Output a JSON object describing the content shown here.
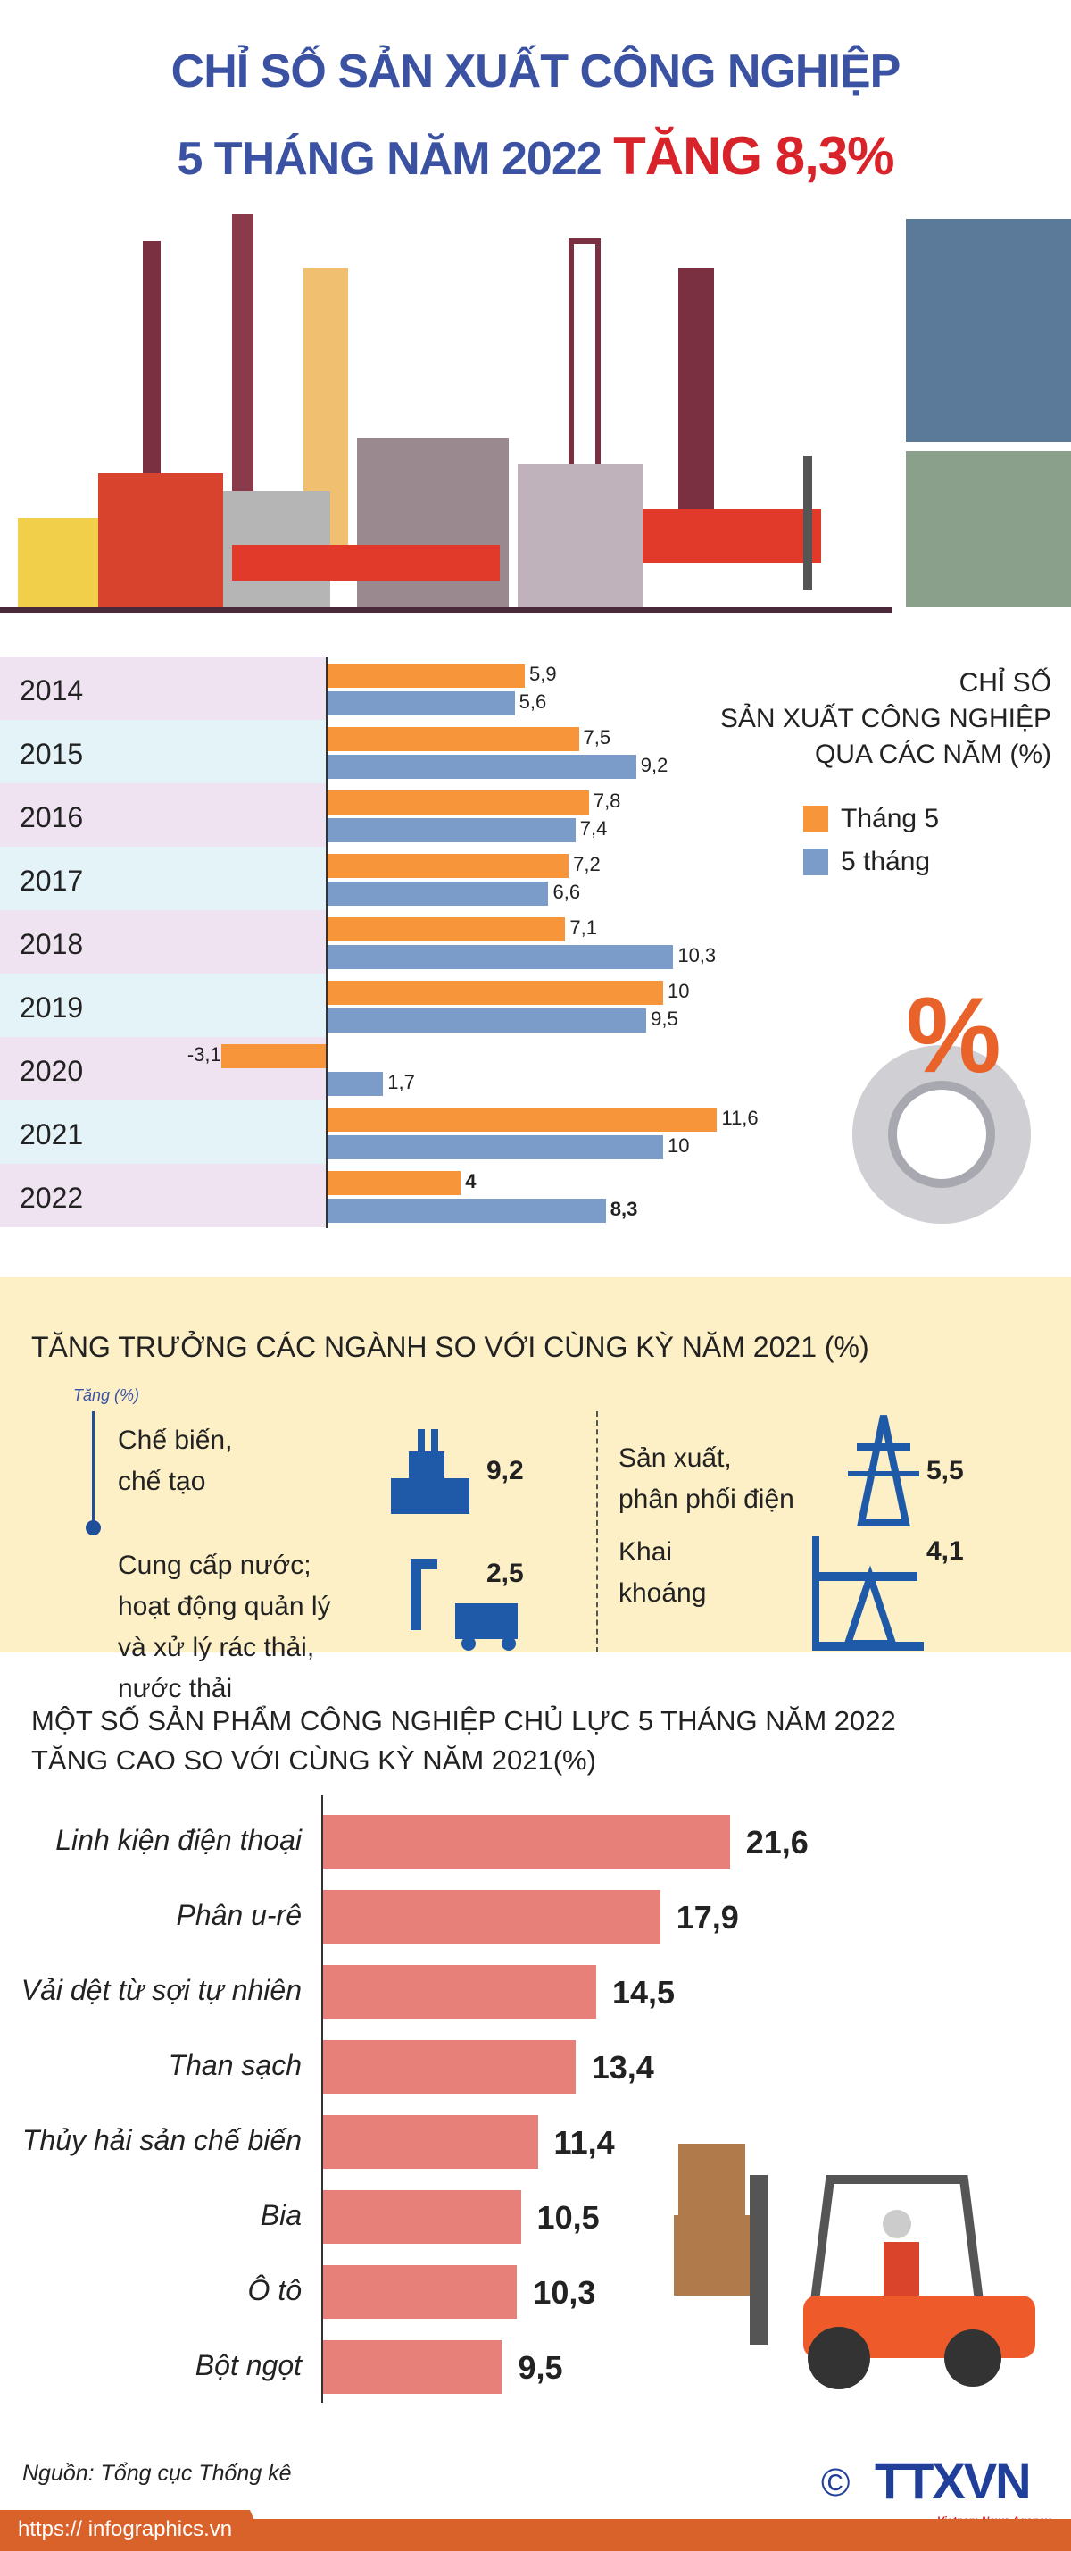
{
  "header": {
    "title_line1": "CHỈ SỐ SẢN XUẤT CÔNG NGHIỆP",
    "title_line2_prefix": "5 THÁNG NĂM 2022",
    "title_line2_highlight": "TĂNG 8,3%"
  },
  "colors": {
    "title_blue": "#3b52a3",
    "title_red": "#d9232a",
    "orange": "#f7953a",
    "blue": "#7b9bc8",
    "product_bar": "#e8807a",
    "section_bg": "#fdf0c6",
    "footer": "#d9622b"
  },
  "chart_data": [
    {
      "type": "bar",
      "orientation": "horizontal",
      "title": "CHỈ SỐ SẢN XUẤT CÔNG NGHIỆP QUA CÁC NĂM (%)",
      "title_lines": [
        "CHỈ SỐ",
        "SẢN XUẤT CÔNG NGHIỆP",
        "QUA CÁC NĂM (%)"
      ],
      "categories": [
        "2014",
        "2015",
        "2016",
        "2017",
        "2018",
        "2019",
        "2020",
        "2021",
        "2022"
      ],
      "series": [
        {
          "name": "Tháng 5",
          "color": "#f7953a",
          "values": [
            5.9,
            7.5,
            7.8,
            7.2,
            7.1,
            10,
            -3.1,
            11.6,
            4
          ],
          "labels": [
            "5,9",
            "7,5",
            "7,8",
            "7,2",
            "7,1",
            "10",
            "-3,1",
            "11,6",
            "4"
          ]
        },
        {
          "name": "5 tháng",
          "color": "#7b9bc8",
          "values": [
            5.6,
            9.2,
            7.4,
            6.6,
            10.3,
            9.5,
            1.7,
            10,
            8.3
          ],
          "labels": [
            "5,6",
            "9,2",
            "7,4",
            "6,6",
            "10,3",
            "9,5",
            "1,7",
            "10",
            "8,3"
          ]
        }
      ],
      "legend": "right"
    },
    {
      "type": "bar",
      "orientation": "horizontal",
      "title": "MỘT SỐ SẢN PHẨM CÔNG NGHIỆP CHỦ LỰC 5 THÁNG NĂM 2022 TĂNG CAO SO VỚI CÙNG KỲ NĂM 2021(%)",
      "title_lines": [
        "MỘT SỐ SẢN PHẨM CÔNG NGHIỆP CHỦ LỰC 5 THÁNG NĂM 2022",
        "TĂNG CAO SO VỚI CÙNG KỲ NĂM 2021(%)"
      ],
      "categories": [
        "Linh kiện điện thoại",
        "Phân u-rê",
        "Vải dệt từ sợi tự nhiên",
        "Than sạch",
        "Thủy hải sản chế biến",
        "Bia",
        "Ô tô",
        "Bột ngọt"
      ],
      "values": [
        21.6,
        17.9,
        14.5,
        13.4,
        11.4,
        10.5,
        10.3,
        9.5
      ],
      "labels": [
        "21,6",
        "17,9",
        "14,5",
        "13,4",
        "11,4",
        "10,5",
        "10,3",
        "9,5"
      ],
      "color": "#e8807a"
    }
  ],
  "sectors": {
    "title": "TĂNG TRƯỞNG CÁC NGÀNH SO VỚI CÙNG KỲ NĂM 2021 (%)",
    "axis_label": "Tăng (%)",
    "items": [
      {
        "label_lines": [
          "Chế biến,",
          "chế tạo"
        ],
        "value": "9,2",
        "icon": "factory-icon"
      },
      {
        "label_lines": [
          "Sản xuất,",
          "phân phối điện"
        ],
        "value": "5,5",
        "icon": "power-tower-icon"
      },
      {
        "label_lines": [
          "Cung cấp nước;",
          "hoạt động quản lý",
          "và xử lý rác thải,",
          "nước thải"
        ],
        "value": "2,5",
        "icon": "water-tap-truck-icon"
      },
      {
        "label_lines": [
          "Khai",
          "khoáng"
        ],
        "value": "4,1",
        "icon": "oil-pump-icon"
      }
    ]
  },
  "footer": {
    "source": "Nguồn: Tổng cục Thống kê",
    "url": "https:// infographics.vn",
    "logo": "TTXVN",
    "logo_sub": "Vietnam News Agency",
    "copyright": "©"
  }
}
